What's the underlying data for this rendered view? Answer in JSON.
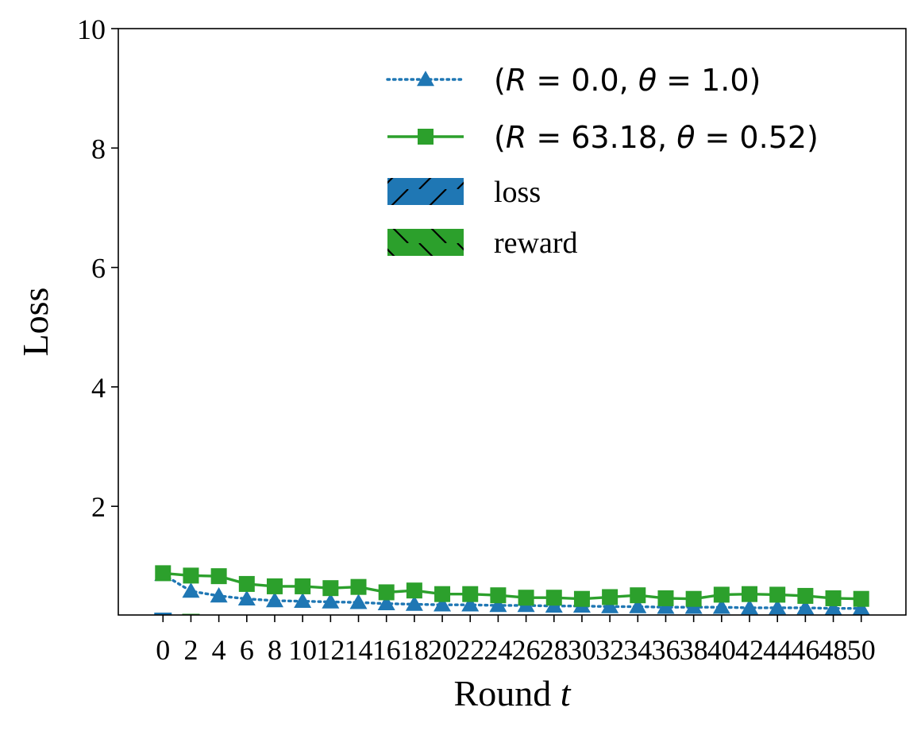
{
  "chart_data": {
    "type": "line",
    "xlabel_text": "Round ",
    "xlabel_var": "t",
    "ylabel": "Loss",
    "xlim": [
      -3.2,
      53.2
    ],
    "ylim": [
      0.18,
      10
    ],
    "yticks": [
      2,
      4,
      6,
      8,
      10
    ],
    "xticks": [
      0,
      2,
      4,
      6,
      8,
      10,
      12,
      14,
      16,
      18,
      20,
      22,
      24,
      26,
      28,
      30,
      32,
      34,
      36,
      38,
      40,
      42,
      44,
      46,
      48,
      50
    ],
    "grid": false,
    "legend_position": "top-right",
    "series": [
      {
        "name": "(R = 0.0, θ = 1.0)",
        "label_parts": [
          "(",
          "R",
          " = 0.0, ",
          "θ",
          " = 1.0)"
        ],
        "color": "#1f77b4",
        "marker": "triangle",
        "linestyle": "dotted",
        "x": [
          0,
          2,
          4,
          6,
          8,
          10,
          12,
          14,
          16,
          18,
          20,
          22,
          24,
          26,
          28,
          30,
          32,
          34,
          36,
          38,
          40,
          42,
          44,
          46,
          48,
          50
        ],
        "y": [
          0.86,
          0.58,
          0.5,
          0.45,
          0.42,
          0.41,
          0.4,
          0.39,
          0.37,
          0.36,
          0.35,
          0.35,
          0.34,
          0.34,
          0.33,
          0.33,
          0.32,
          0.32,
          0.31,
          0.31,
          0.31,
          0.3,
          0.3,
          0.3,
          0.29,
          0.29
        ]
      },
      {
        "name": "(R = 63.18, θ = 0.52)",
        "label_parts": [
          "(",
          "R",
          " = 63.18, ",
          "θ",
          " = 0.52)"
        ],
        "color": "#2ca02c",
        "marker": "square",
        "linestyle": "solid",
        "x": [
          0,
          2,
          4,
          6,
          8,
          10,
          12,
          14,
          16,
          18,
          20,
          22,
          24,
          26,
          28,
          30,
          32,
          34,
          36,
          38,
          40,
          42,
          44,
          46,
          48,
          50
        ],
        "y": [
          0.88,
          0.84,
          0.83,
          0.7,
          0.66,
          0.66,
          0.63,
          0.65,
          0.56,
          0.59,
          0.53,
          0.53,
          0.51,
          0.47,
          0.47,
          0.45,
          0.48,
          0.51,
          0.46,
          0.45,
          0.52,
          0.53,
          0.52,
          0.5,
          0.46,
          0.45
        ]
      }
    ],
    "bars": [
      {
        "name": "loss",
        "color": "#1f77b4",
        "hatch": "/",
        "x": [
          0,
          2
        ],
        "y": [
          0.22,
          0.18
        ]
      },
      {
        "name": "reward",
        "color": "#2ca02c",
        "hatch": "\\",
        "x": [
          0,
          2
        ],
        "y": [
          0.0,
          0.2
        ]
      }
    ]
  }
}
